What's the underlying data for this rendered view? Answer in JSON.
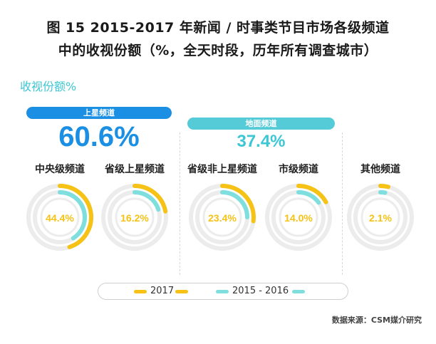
{
  "title_line1": "图 15  2015-2017 年新闻 / 时事类节目市场各级频道",
  "title_line2": "中的收视份额（%，全天时段，历年所有调查城市）",
  "metric_label": "收视份额%",
  "groups": [
    {
      "label": "上星频道",
      "total": "60.6%",
      "color": "#1a8fe3"
    },
    {
      "label": "地面频道",
      "total": "37.4%",
      "color": "#55cbd8"
    }
  ],
  "legend": {
    "series_2017": "2017",
    "series_2015_2016": "2015 - 2016"
  },
  "source": "数据来源：CSM媒介研究",
  "colors": {
    "series_2017": "#f5c215",
    "series_2015_2016": "#7fdede",
    "track": "#ececec"
  },
  "chart_data": {
    "type": "radial-bar",
    "title": "图 15  2015-2017 年新闻 / 时事类节目市场各级频道中的收视份额（%，全天时段，历年所有调查城市）",
    "ylabel": "收视份额%",
    "categories": [
      "中央级频道",
      "省级上星频道",
      "省级非上星频道",
      "市级频道",
      "其他频道"
    ],
    "series": [
      {
        "name": "2017",
        "values": [
          44.4,
          16.2,
          23.4,
          14.0,
          2.1
        ]
      },
      {
        "name": "2015 - 2016",
        "values": [
          44.4,
          16.2,
          23.4,
          14.0,
          2.1
        ]
      }
    ],
    "value_labels": [
      "44.4%",
      "16.2%",
      "23.4%",
      "14.0%",
      "2.1%"
    ],
    "arc_fractions_2017": [
      0.45,
      0.22,
      0.27,
      0.17,
      0.04
    ],
    "arc_fractions_2015_2016": [
      0.41,
      0.2,
      0.25,
      0.15,
      0.03
    ]
  }
}
